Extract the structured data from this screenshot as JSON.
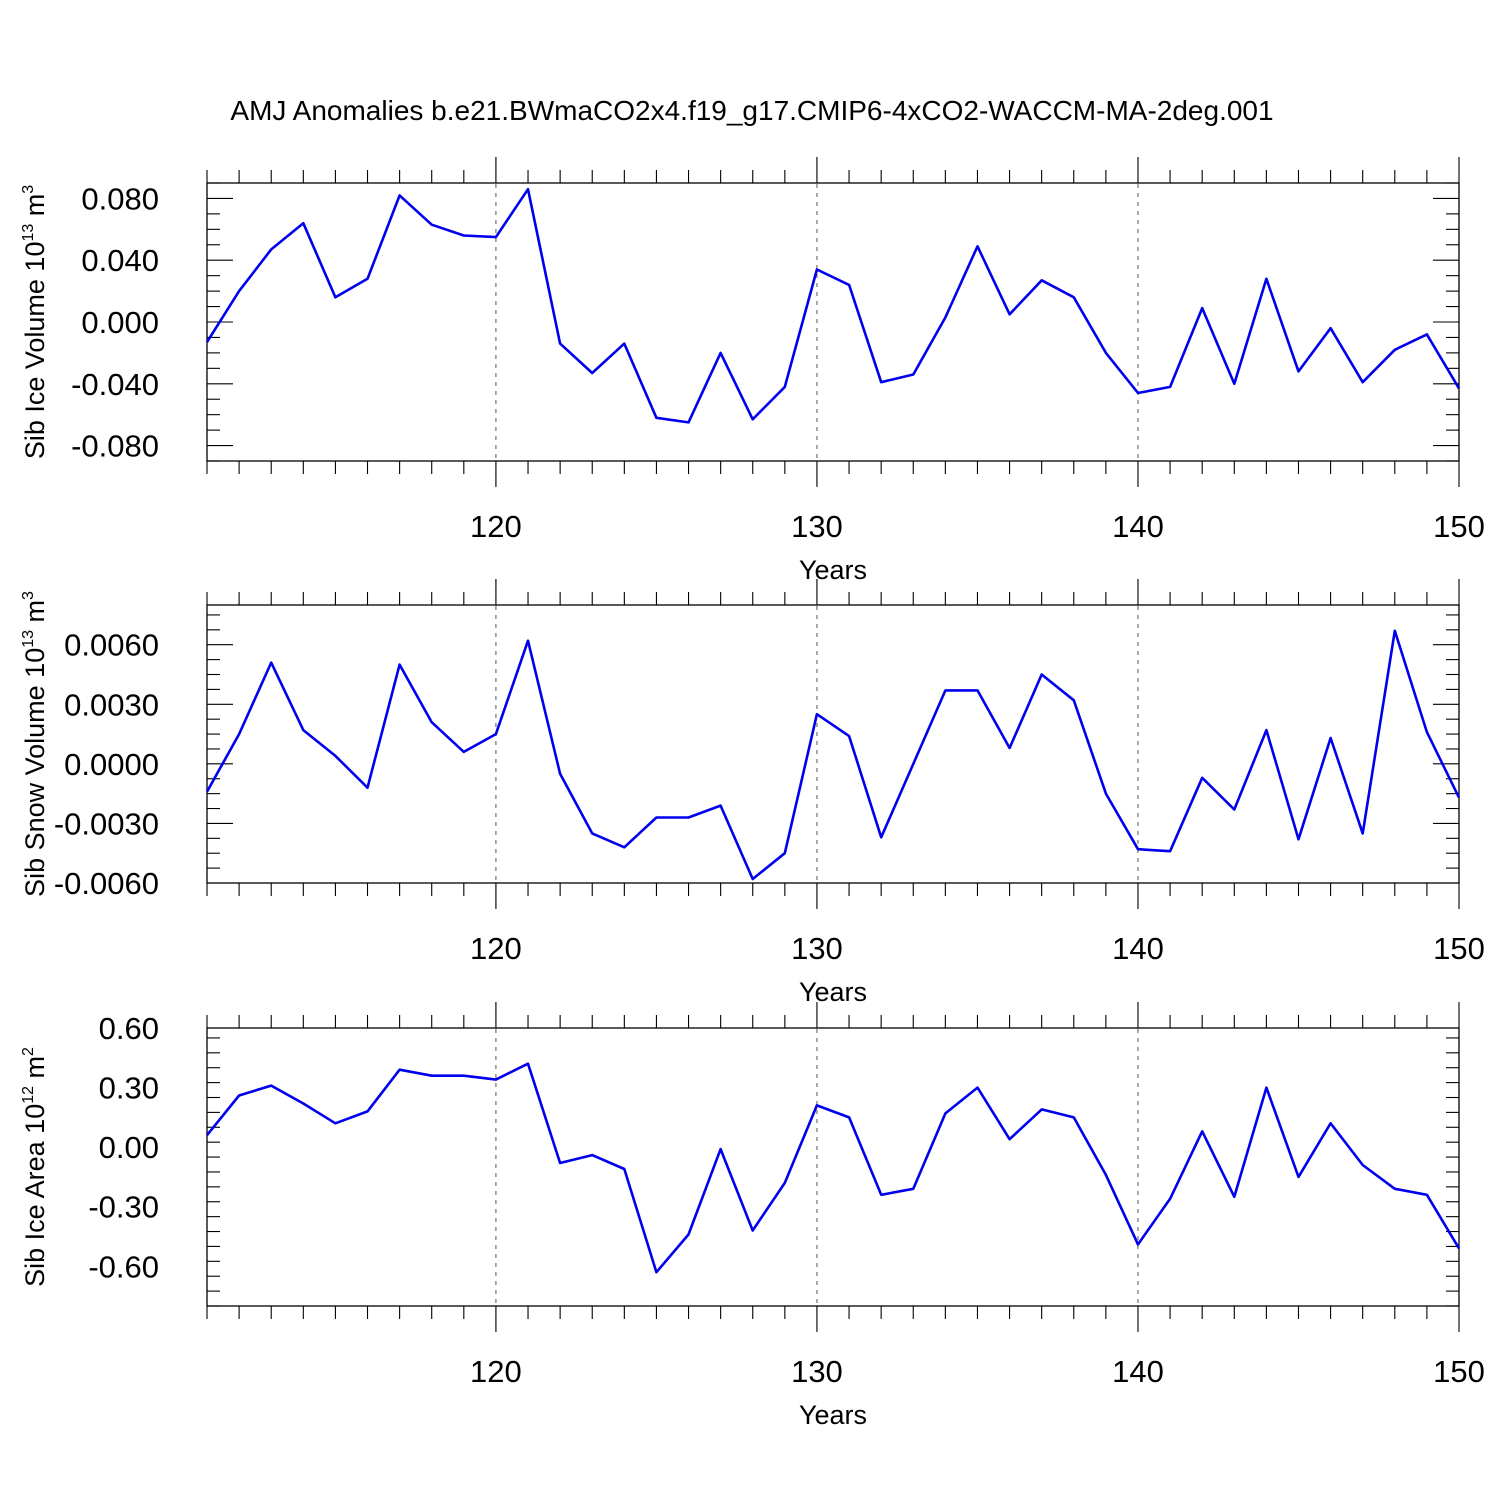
{
  "title": "AMJ Anomalies b.e21.BWmaCO2x4.f19_g17.CMIP6-4xCO2-WACCM-MA-2deg.001",
  "colors": {
    "series": "#0000ee",
    "axis": "#000000",
    "grid": "#555555"
  },
  "chart_data": [
    {
      "type": "line",
      "ylabel": {
        "main": "Sib Ice Volume 10",
        "sup": "13",
        "unit": " m",
        "unit_sup": "3"
      },
      "xlabel": "Years",
      "xlim": [
        111,
        150
      ],
      "ylim": [
        -0.09,
        0.09
      ],
      "yticks": [
        -0.08,
        -0.04,
        0.0,
        0.04,
        0.08
      ],
      "yticklabels": [
        "-0.080",
        "-0.040",
        "0.000",
        "0.040",
        "0.080"
      ],
      "yminor_step": 0.01,
      "xticks": [
        120,
        130,
        140,
        150
      ],
      "xticklabels": [
        "120",
        "130",
        "140",
        "150"
      ],
      "xminor_step": 1,
      "grid_x": [
        120,
        130,
        140
      ],
      "x": [
        111,
        112,
        113,
        114,
        115,
        116,
        117,
        118,
        119,
        120,
        121,
        122,
        123,
        124,
        125,
        126,
        127,
        128,
        129,
        130,
        131,
        132,
        133,
        134,
        135,
        136,
        137,
        138,
        139,
        140,
        141,
        142,
        143,
        144,
        145,
        146,
        147,
        148,
        149,
        150
      ],
      "y": [
        -0.013,
        0.02,
        0.047,
        0.064,
        0.016,
        0.028,
        0.082,
        0.063,
        0.056,
        0.055,
        0.086,
        -0.014,
        -0.033,
        -0.014,
        -0.062,
        -0.065,
        -0.02,
        -0.063,
        -0.042,
        0.034,
        0.024,
        -0.039,
        -0.034,
        0.003,
        0.049,
        0.005,
        0.027,
        0.016,
        -0.02,
        -0.046,
        -0.042,
        0.009,
        -0.04,
        0.028,
        -0.032,
        -0.004,
        -0.039,
        -0.018,
        -0.008,
        -0.043
      ]
    },
    {
      "type": "line",
      "ylabel": {
        "main": "Sib Snow Volume 10",
        "sup": "13",
        "unit": " m",
        "unit_sup": "3"
      },
      "xlabel": "Years",
      "xlim": [
        111,
        150
      ],
      "ylim": [
        -0.006,
        0.008
      ],
      "yticks": [
        -0.006,
        -0.003,
        0.0,
        0.003,
        0.006
      ],
      "yticklabels": [
        "-0.0060",
        "-0.0030",
        "0.0000",
        "0.0030",
        "0.0060"
      ],
      "yminor_step": 0.00075,
      "xticks": [
        120,
        130,
        140,
        150
      ],
      "xticklabels": [
        "120",
        "130",
        "140",
        "150"
      ],
      "xminor_step": 1,
      "grid_x": [
        120,
        130,
        140
      ],
      "x": [
        111,
        112,
        113,
        114,
        115,
        116,
        117,
        118,
        119,
        120,
        121,
        122,
        123,
        124,
        125,
        126,
        127,
        128,
        129,
        130,
        131,
        132,
        133,
        134,
        135,
        136,
        137,
        138,
        139,
        140,
        141,
        142,
        143,
        144,
        145,
        146,
        147,
        148,
        149,
        150
      ],
      "y": [
        -0.0014,
        0.0015,
        0.0051,
        0.0017,
        0.0004,
        -0.0012,
        0.005,
        0.0021,
        0.0006,
        0.0015,
        0.0062,
        -0.0005,
        -0.0035,
        -0.0042,
        -0.0027,
        -0.0027,
        -0.0021,
        -0.0058,
        -0.0045,
        0.0025,
        0.0014,
        -0.0037,
        0.0,
        0.0037,
        0.0037,
        0.0008,
        0.0045,
        0.0032,
        -0.0015,
        -0.0043,
        -0.0044,
        -0.0007,
        -0.0023,
        0.0017,
        -0.0038,
        0.0013,
        -0.0035,
        0.0067,
        0.0016,
        -0.0017
      ]
    },
    {
      "type": "line",
      "ylabel": {
        "main": "Sib Ice Area 10",
        "sup": "12",
        "unit": " m",
        "unit_sup": "2"
      },
      "xlabel": "Years",
      "xlim": [
        111,
        150
      ],
      "ylim": [
        -0.8,
        0.6
      ],
      "yticks": [
        -0.6,
        -0.3,
        0.0,
        0.3,
        0.6
      ],
      "yticklabels": [
        "-0.60",
        "-0.30",
        "0.00",
        "0.30",
        "0.60"
      ],
      "yminor_step": 0.075,
      "xticks": [
        120,
        130,
        140,
        150
      ],
      "xticklabels": [
        "120",
        "130",
        "140",
        "150"
      ],
      "xminor_step": 1,
      "grid_x": [
        120,
        130,
        140
      ],
      "x": [
        111,
        112,
        113,
        114,
        115,
        116,
        117,
        118,
        119,
        120,
        121,
        122,
        123,
        124,
        125,
        126,
        127,
        128,
        129,
        130,
        131,
        132,
        133,
        134,
        135,
        136,
        137,
        138,
        139,
        140,
        141,
        142,
        143,
        144,
        145,
        146,
        147,
        148,
        149,
        150
      ],
      "y": [
        0.06,
        0.26,
        0.31,
        0.22,
        0.12,
        0.18,
        0.39,
        0.36,
        0.36,
        0.34,
        0.42,
        -0.08,
        -0.04,
        -0.11,
        -0.63,
        -0.44,
        -0.01,
        -0.42,
        -0.18,
        0.21,
        0.15,
        -0.24,
        -0.21,
        0.17,
        0.3,
        0.04,
        0.19,
        0.15,
        -0.14,
        -0.49,
        -0.26,
        0.08,
        -0.25,
        0.3,
        -0.15,
        0.12,
        -0.09,
        -0.21,
        -0.24,
        -0.51
      ]
    }
  ]
}
